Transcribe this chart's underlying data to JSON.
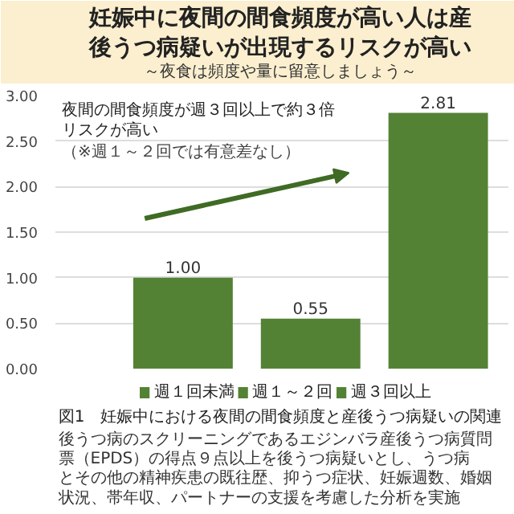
{
  "chart_data": {
    "type": "bar",
    "title": "妊娠中に夜間の間食頻度が高い人は産後うつ病疑いが出現するリスクが高い",
    "subtitle": "～夜食は頻度や量に留意しましょう～",
    "categories": [
      null,
      null,
      null
    ],
    "series": [
      {
        "name": "週１回未満",
        "color": "#548235",
        "values": [
          1.0,
          null,
          null
        ],
        "value_labels": [
          "1.00",
          null,
          null
        ]
      },
      {
        "name": "週１～２回",
        "color": "#548235",
        "values": [
          null,
          0.55,
          null
        ],
        "value_labels": [
          null,
          "0.55",
          null
        ]
      },
      {
        "name": "週３回以上",
        "color": "#548235",
        "values": [
          null,
          null,
          2.81
        ],
        "value_labels": [
          null,
          null,
          "2.81"
        ]
      }
    ],
    "ylim": [
      0,
      3
    ],
    "yticks": [
      {
        "value": 0,
        "label": "0.00"
      },
      {
        "value": 0.5,
        "label": "0.50"
      },
      {
        "value": 1,
        "label": "1.00"
      },
      {
        "value": 1.5,
        "label": "1.50"
      },
      {
        "value": 2,
        "label": "2.00"
      },
      {
        "value": 2.5,
        "label": "2.50"
      },
      {
        "value": 3,
        "label": "3.00"
      }
    ],
    "grid": "y",
    "legend": "bottom",
    "annotations": [
      "夜間の間食頻度が週３回以上で約３倍リスクが高い",
      "（※週１～２回では有意差なし）",
      "図1　妊娠中における夜間の間食頻度と産後うつ病疑いの関連",
      "後うつ病のスクリーニングであるエジンバラ産後うつ病質問票（EPDS）の得点９点以上を後うつ病疑いとし、うつ病とその他の精神疾患の既往歴、抑うつ症状、妊娠週数、婚姻状況、帯年収、パートナーの支援を考慮した分析を実施"
    ]
  }
}
